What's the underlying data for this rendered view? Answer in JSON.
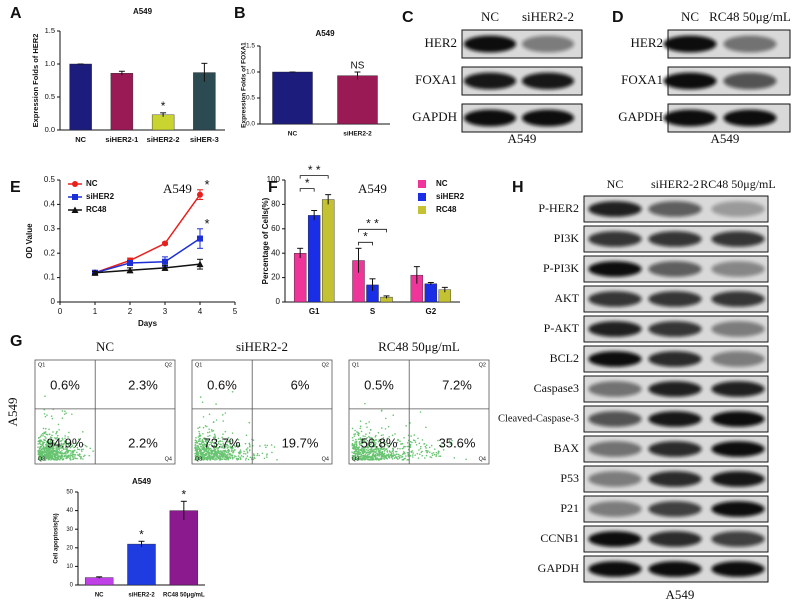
{
  "chart_data": [
    {
      "type": "bar",
      "title": "A549",
      "y_label": "Expression Folds of HER2",
      "categories": [
        "NC",
        "siHER2-1",
        "siHER2-2",
        "siHER-3"
      ],
      "values": [
        1.0,
        0.86,
        0.23,
        0.87
      ],
      "errors": [
        0,
        0.03,
        0.03,
        0.14
      ],
      "colors": [
        "#1c1c7c",
        "#9a1a56",
        "#c9d430",
        "#2c4a52"
      ],
      "significance": [
        null,
        null,
        "*",
        null
      ],
      "ylim": [
        0,
        1.5
      ],
      "yticks": [
        {
          "value": 0,
          "label": "0.0"
        },
        0.5,
        {
          "value": 1,
          "label": "1.0"
        },
        1.5
      ]
    },
    {
      "type": "bar",
      "title": "A549",
      "y_label": "Expression Folds of FOXA1",
      "categories": [
        "NC",
        "siHER2-2"
      ],
      "values": [
        1.0,
        0.93
      ],
      "errors": [
        0,
        0.07
      ],
      "colors": [
        "#1c1c7c",
        "#9a1a56"
      ],
      "significance": [
        null,
        "NS"
      ],
      "ylim": [
        0,
        1.5
      ],
      "yticks": [
        {
          "value": 0,
          "label": "0.0"
        },
        0.5,
        {
          "value": 1,
          "label": "1.0"
        },
        1.5
      ]
    },
    {
      "type": "line",
      "title": "A549",
      "x_label": "Days",
      "y_label": "OD Value",
      "x": [
        1,
        2,
        3,
        4
      ],
      "series": [
        {
          "name": "NC",
          "color": "#e8201c",
          "values": [
            0.12,
            0.17,
            0.24,
            0.44
          ],
          "errors": [
            0.005,
            0.01,
            0.005,
            0.02
          ],
          "significance": [
            null,
            null,
            null,
            "*"
          ]
        },
        {
          "name": "siHER2",
          "color": "#1c2fd6",
          "values": [
            0.12,
            0.16,
            0.165,
            0.26
          ],
          "errors": [
            0.005,
            0.01,
            0.02,
            0.04
          ],
          "significance": [
            null,
            null,
            null,
            "*"
          ]
        },
        {
          "name": "RC48",
          "color": "#111111",
          "values": [
            0.12,
            0.13,
            0.14,
            0.155
          ],
          "errors": [
            0.005,
            0.01,
            0.01,
            0.02
          ]
        }
      ],
      "xlim": [
        0,
        5
      ],
      "xticks": [
        0,
        1,
        2,
        3,
        4,
        5
      ],
      "ylim": [
        0,
        0.5
      ],
      "yticks": [
        0,
        0.1,
        0.2,
        0.3,
        0.4,
        0.5
      ],
      "legend": "upper left"
    },
    {
      "type": "bar",
      "title": "A549",
      "y_label": "Percentage of Cells(%)",
      "categories": [
        "G1",
        "S",
        "G2"
      ],
      "series": [
        {
          "name": "NC",
          "color": "#f0359a",
          "values": [
            40,
            34,
            22
          ],
          "errors": [
            4,
            10,
            7
          ]
        },
        {
          "name": "siHER2",
          "color": "#1a2ee8",
          "values": [
            71,
            14,
            15
          ],
          "errors": [
            4,
            5,
            1
          ]
        },
        {
          "name": "RC48",
          "color": "#c4c232",
          "values": [
            84,
            4,
            10
          ],
          "errors": [
            4,
            1,
            2
          ]
        }
      ],
      "brackets": [
        {
          "category": "G1",
          "from": "NC",
          "to": "RC48",
          "text": "* *"
        },
        {
          "category": "G1",
          "from": "NC",
          "to": "siHER2",
          "text": "*"
        },
        {
          "category": "S",
          "from": "NC",
          "to": "RC48",
          "text": "* *"
        },
        {
          "category": "S",
          "from": "NC",
          "to": "siHER2",
          "text": "*"
        }
      ],
      "ylim": [
        0,
        100
      ],
      "yticks": [
        0,
        20,
        40,
        60,
        80,
        100
      ],
      "legend": "upper right"
    },
    {
      "type": "bar",
      "title": "A549",
      "y_label": "Cell apoptosis(%)",
      "categories": [
        "NC",
        "siHER2-2",
        "RC48 50μg/mL"
      ],
      "values": [
        4,
        22,
        40
      ],
      "errors": [
        0.4,
        1.5,
        5
      ],
      "colors": [
        "#c040e8",
        "#1e3ce0",
        "#8a1a8e"
      ],
      "significance": [
        null,
        "*",
        "*"
      ],
      "ylim": [
        0,
        50
      ],
      "yticks": [
        0,
        10,
        20,
        30,
        40,
        50
      ]
    }
  ],
  "panel_labels": [
    "A",
    "B",
    "C",
    "D",
    "E",
    "F",
    "G",
    "H"
  ],
  "blots": [
    {
      "columns": [
        "NC",
        "siHER2-2"
      ],
      "rows": [
        "HER2",
        "FOXA1",
        "GAPDH"
      ],
      "cell_line": "A549"
    },
    {
      "columns": [
        "NC",
        "RC48 50μg/mL"
      ],
      "rows": [
        "HER2",
        "FOXA1",
        "GAPDH"
      ],
      "cell_line": "A549"
    },
    {
      "columns": [
        "NC",
        "siHER2-2",
        "RC48 50μg/mL"
      ],
      "rows": [
        "P-HER2",
        "PI3K",
        "P-PI3K",
        "AKT",
        "P-AKT",
        "BCL2",
        "Caspase3",
        "Cleaved-Caspase-3",
        "BAX",
        "P53",
        "P21",
        "CCNB1",
        "GAPDH"
      ],
      "cell_line": "A549"
    }
  ],
  "flow": {
    "columns": [
      "NC",
      "siHER2-2",
      "RC48 50μg/mL"
    ],
    "row_label": "A549",
    "quadrants": [
      "Q1",
      "Q2",
      "Q3",
      "Q4"
    ],
    "percentages": [
      [
        "0.6%",
        "2.3%",
        "94.9%",
        "2.2%"
      ],
      [
        "0.6%",
        "6%",
        "73.7%",
        "19.7%"
      ],
      [
        "0.5%",
        "7.2%",
        "56.8%",
        "35.6%"
      ]
    ]
  }
}
